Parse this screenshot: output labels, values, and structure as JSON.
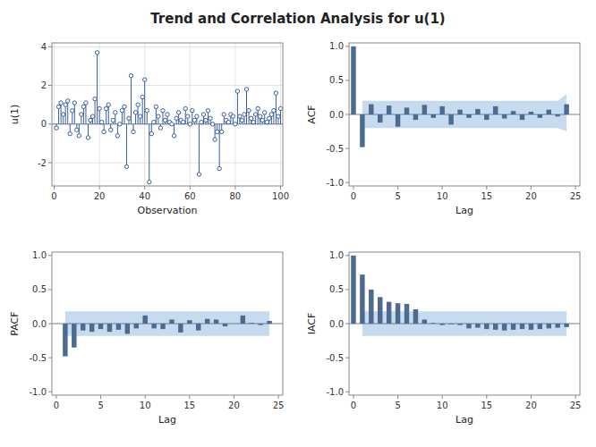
{
  "title": "Trend and Correlation Analysis for u(1)",
  "chart_data": [
    {
      "type": "stem",
      "marker": "circle",
      "color": "#3a5f9e",
      "grid": true,
      "x_label": "Observation",
      "y_label": "u(1)",
      "x": [
        1,
        2,
        3,
        4,
        5,
        6,
        7,
        8,
        9,
        10,
        11,
        12,
        13,
        14,
        15,
        16,
        17,
        18,
        19,
        20,
        21,
        22,
        23,
        24,
        25,
        26,
        27,
        28,
        29,
        30,
        31,
        32,
        33,
        34,
        35,
        36,
        37,
        38,
        39,
        40,
        41,
        42,
        43,
        44,
        45,
        46,
        47,
        48,
        49,
        50,
        51,
        52,
        53,
        54,
        55,
        56,
        57,
        58,
        59,
        60,
        61,
        62,
        63,
        64,
        65,
        66,
        67,
        68,
        69,
        70,
        71,
        72,
        73,
        74,
        75,
        76,
        77,
        78,
        79,
        80,
        81,
        82,
        83,
        84,
        85,
        86,
        87,
        88,
        89,
        90,
        91,
        92,
        93,
        94,
        95,
        96,
        97,
        98,
        99,
        100
      ],
      "values": [
        -0.2,
        0.9,
        1.1,
        0.5,
        1.0,
        1.2,
        -0.5,
        0.7,
        1.1,
        -0.3,
        -0.6,
        0.5,
        0.9,
        1.1,
        -0.7,
        0.2,
        0.4,
        1.3,
        3.7,
        0.8,
        0.1,
        -0.4,
        0.8,
        1.0,
        -0.3,
        0.2,
        0.6,
        -0.6,
        0.0,
        0.7,
        0.9,
        -2.2,
        0.3,
        2.5,
        -0.4,
        0.6,
        1.0,
        0.4,
        1.4,
        2.3,
        0.7,
        -3.0,
        -0.5,
        0.1,
        0.9,
        0.4,
        -0.2,
        0.7,
        0.2,
        0.5,
        0.1,
        0.0,
        -0.6,
        0.3,
        0.6,
        0.2,
        0.1,
        0.8,
        0.4,
        0.0,
        0.7,
        0.2,
        0.4,
        -2.6,
        0.1,
        0.5,
        0.2,
        0.7,
        0.3,
        0.0,
        -0.8,
        -0.4,
        -2.3,
        -0.4,
        0.5,
        0.2,
        0.1,
        0.5,
        0.4,
        0.0,
        1.7,
        0.4,
        0.2,
        0.5,
        1.8,
        0.7,
        0.3,
        0.1,
        0.5,
        0.8,
        0.4,
        0.2,
        0.6,
        0.1,
        0.3,
        0.5,
        0.7,
        1.6,
        0.4,
        0.8
      ],
      "xlim": [
        -1,
        101
      ],
      "xticks": [
        0,
        20,
        40,
        60,
        80,
        100
      ],
      "ylim": [
        -3.2,
        4.2
      ],
      "yticks": [
        -2,
        0,
        2,
        4
      ]
    },
    {
      "type": "bar",
      "color": "#4d6b8f",
      "grid": false,
      "x_label": "Lag",
      "y_label": "ACF",
      "x": [
        0,
        1,
        2,
        3,
        4,
        5,
        6,
        7,
        8,
        9,
        10,
        11,
        12,
        13,
        14,
        15,
        16,
        17,
        18,
        19,
        20,
        21,
        22,
        23,
        24
      ],
      "values": [
        1.0,
        -0.48,
        0.15,
        -0.12,
        0.13,
        -0.18,
        0.1,
        -0.08,
        0.14,
        -0.05,
        0.12,
        -0.15,
        0.07,
        -0.05,
        0.08,
        -0.08,
        0.12,
        -0.06,
        0.05,
        -0.08,
        0.04,
        -0.05,
        0.07,
        -0.03,
        0.15
      ],
      "conf_x": [
        1,
        2,
        3,
        4,
        5,
        6,
        7,
        8,
        9,
        10,
        11,
        12,
        13,
        14,
        15,
        16,
        17,
        18,
        19,
        20,
        21,
        22,
        23,
        24
      ],
      "conf_upper": [
        0.2,
        0.2,
        0.2,
        0.2,
        0.2,
        0.2,
        0.2,
        0.2,
        0.2,
        0.2,
        0.2,
        0.2,
        0.2,
        0.2,
        0.2,
        0.2,
        0.2,
        0.2,
        0.2,
        0.2,
        0.2,
        0.2,
        0.2,
        0.3
      ],
      "conf_lower": [
        -0.2,
        -0.2,
        -0.2,
        -0.2,
        -0.2,
        -0.2,
        -0.2,
        -0.2,
        -0.2,
        -0.2,
        -0.2,
        -0.2,
        -0.2,
        -0.2,
        -0.2,
        -0.2,
        -0.2,
        -0.2,
        -0.2,
        -0.2,
        -0.2,
        -0.2,
        -0.2,
        -0.25
      ],
      "xlim": [
        -0.5,
        25.5
      ],
      "xticks": [
        0,
        5,
        10,
        15,
        20,
        25
      ],
      "ylim": [
        -1.05,
        1.05
      ],
      "yticks": [
        {
          "value": -1.0,
          "label": "-1.0"
        },
        -0.5,
        {
          "value": 0.0,
          "label": "0.0"
        },
        0.5,
        {
          "value": 1.0,
          "label": "1.0"
        }
      ]
    },
    {
      "type": "bar",
      "color": "#4d6b8f",
      "grid": false,
      "x_label": "Lag",
      "y_label": "PACF",
      "x": [
        1,
        2,
        3,
        4,
        5,
        6,
        7,
        8,
        9,
        10,
        11,
        12,
        13,
        14,
        15,
        16,
        17,
        18,
        19,
        20,
        21,
        22,
        23,
        24
      ],
      "values": [
        -0.48,
        -0.35,
        -0.1,
        -0.12,
        -0.08,
        -0.12,
        -0.09,
        -0.15,
        -0.07,
        0.12,
        -0.07,
        -0.08,
        0.06,
        -0.13,
        0.05,
        -0.1,
        0.07,
        0.06,
        -0.04,
        0.0,
        0.12,
        0.01,
        -0.02,
        0.04
      ],
      "conf_x": [
        1,
        2,
        3,
        4,
        5,
        6,
        7,
        8,
        9,
        10,
        11,
        12,
        13,
        14,
        15,
        16,
        17,
        18,
        19,
        20,
        21,
        22,
        23,
        24
      ],
      "conf_upper": 0.18,
      "conf_lower": -0.18,
      "xlim": [
        -0.5,
        25.5
      ],
      "xticks": [
        0,
        5,
        10,
        15,
        20,
        25
      ],
      "ylim": [
        -1.05,
        1.05
      ],
      "yticks": [
        {
          "value": -1.0,
          "label": "-1.0"
        },
        -0.5,
        {
          "value": 0.0,
          "label": "0.0"
        },
        0.5,
        {
          "value": 1.0,
          "label": "1.0"
        }
      ]
    },
    {
      "type": "bar",
      "color": "#4d6b8f",
      "grid": false,
      "x_label": "Lag",
      "y_label": "IACF",
      "x": [
        0,
        1,
        2,
        3,
        4,
        5,
        6,
        7,
        8,
        9,
        10,
        11,
        12,
        13,
        14,
        15,
        16,
        17,
        18,
        19,
        20,
        21,
        22,
        23,
        24
      ],
      "values": [
        1.0,
        0.72,
        0.5,
        0.39,
        0.32,
        0.3,
        0.29,
        0.21,
        0.06,
        0.01,
        -0.02,
        -0.01,
        -0.02,
        -0.07,
        -0.06,
        -0.08,
        -0.09,
        -0.1,
        -0.09,
        -0.08,
        -0.09,
        -0.08,
        -0.07,
        -0.06,
        -0.05
      ],
      "conf_x": [
        1,
        2,
        3,
        4,
        5,
        6,
        7,
        8,
        9,
        10,
        11,
        12,
        13,
        14,
        15,
        16,
        17,
        18,
        19,
        20,
        21,
        22,
        23,
        24
      ],
      "conf_upper": 0.18,
      "conf_lower": -0.18,
      "xlim": [
        -0.5,
        25.5
      ],
      "xticks": [
        0,
        5,
        10,
        15,
        20,
        25
      ],
      "ylim": [
        -1.05,
        1.05
      ],
      "yticks": [
        {
          "value": -1.0,
          "label": "-1.0"
        },
        -0.5,
        {
          "value": 0.0,
          "label": "0.0"
        },
        0.5,
        {
          "value": 1.0,
          "label": "1.0"
        }
      ]
    }
  ]
}
